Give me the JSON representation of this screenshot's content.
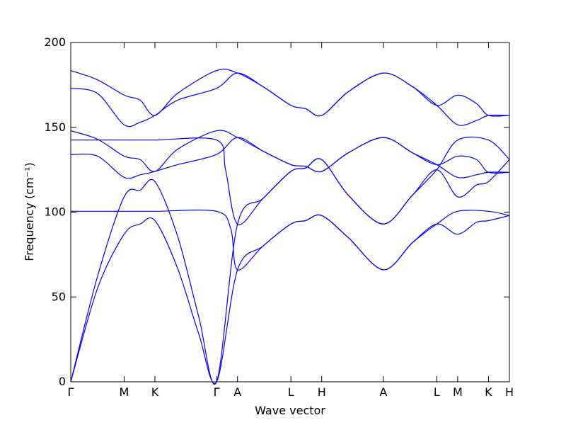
{
  "chart_data": {
    "type": "line",
    "xlabel": "Wave vector",
    "ylabel": "Frequency (cm⁻¹)",
    "ylim": [
      0,
      200
    ],
    "yticks": [
      0,
      50,
      100,
      150,
      200
    ],
    "line_color": "#0000ff",
    "grid": false,
    "legend": "none",
    "high_symmetry_points": [
      {
        "label": "Γ",
        "pos": 0.0
      },
      {
        "label": "M",
        "pos": 1.0
      },
      {
        "label": "K",
        "pos": 1.577
      },
      {
        "label": "Γ",
        "pos": 2.732
      },
      {
        "label": "A",
        "pos": 3.124
      },
      {
        "label": "L",
        "pos": 4.124
      },
      {
        "label": "H",
        "pos": 4.701
      },
      {
        "label": "A",
        "pos": 5.856
      },
      {
        "label": "L",
        "pos": 6.856
      },
      {
        "label": "M",
        "pos": 7.248
      },
      {
        "label": "K",
        "pos": 7.825
      },
      {
        "label": "H",
        "pos": 8.217
      }
    ],
    "bands": [
      {
        "points": [
          [
            0,
            0
          ],
          [
            0.5,
            55
          ],
          [
            1.0,
            87
          ],
          [
            1.3,
            93
          ],
          [
            1.577,
            95
          ],
          [
            2.0,
            67
          ],
          [
            2.4,
            28
          ],
          [
            2.732,
            0
          ],
          [
            3.124,
            66
          ],
          [
            3.6,
            80
          ],
          [
            4.124,
            93
          ],
          [
            4.4,
            95
          ],
          [
            4.701,
            98
          ],
          [
            5.2,
            85
          ],
          [
            5.856,
            66
          ],
          [
            6.4,
            82
          ],
          [
            6.856,
            93
          ],
          [
            7.248,
            87
          ],
          [
            7.6,
            94
          ],
          [
            7.825,
            95
          ],
          [
            8.217,
            98
          ]
        ]
      },
      {
        "points": [
          [
            0,
            0
          ],
          [
            0.5,
            62
          ],
          [
            1.0,
            109
          ],
          [
            1.3,
            113
          ],
          [
            1.577,
            118
          ],
          [
            2.0,
            86
          ],
          [
            2.4,
            38
          ],
          [
            2.732,
            0
          ],
          [
            3.124,
            93
          ],
          [
            3.6,
            108
          ],
          [
            4.124,
            124
          ],
          [
            4.4,
            126
          ],
          [
            4.701,
            131
          ],
          [
            5.2,
            110
          ],
          [
            5.856,
            93
          ],
          [
            6.4,
            110
          ],
          [
            6.856,
            125
          ],
          [
            7.248,
            109
          ],
          [
            7.6,
            116
          ],
          [
            7.825,
            118
          ],
          [
            8.217,
            131
          ]
        ]
      },
      {
        "points": [
          [
            0,
            100.5
          ],
          [
            1.0,
            100.5
          ],
          [
            1.577,
            100.5
          ],
          [
            2.732,
            100.5
          ],
          [
            3.0,
            90
          ],
          [
            3.124,
            66
          ],
          [
            3.6,
            80
          ],
          [
            4.124,
            93
          ],
          [
            4.4,
            95
          ],
          [
            4.701,
            98
          ],
          [
            5.2,
            85
          ],
          [
            5.856,
            66
          ],
          [
            6.4,
            82
          ],
          [
            6.856,
            93
          ],
          [
            7.248,
            100.5
          ],
          [
            7.825,
            100.5
          ],
          [
            8.217,
            98
          ]
        ]
      },
      {
        "points": [
          [
            0,
            134
          ],
          [
            0.5,
            133
          ],
          [
            1.0,
            120.5
          ],
          [
            1.3,
            122
          ],
          [
            1.577,
            124
          ],
          [
            2.0,
            128
          ],
          [
            2.732,
            134
          ],
          [
            3.124,
            144
          ],
          [
            3.6,
            136
          ],
          [
            4.124,
            128
          ],
          [
            4.4,
            127
          ],
          [
            4.701,
            124
          ],
          [
            5.2,
            135
          ],
          [
            5.856,
            144
          ],
          [
            6.4,
            135
          ],
          [
            6.856,
            128
          ],
          [
            7.248,
            120.5
          ],
          [
            7.6,
            122
          ],
          [
            7.825,
            123.5
          ],
          [
            8.217,
            123.5
          ]
        ]
      },
      {
        "points": [
          [
            0,
            142.5
          ],
          [
            1.0,
            142.5
          ],
          [
            1.577,
            142.5
          ],
          [
            2.732,
            142.5
          ],
          [
            2.9,
            125
          ],
          [
            3.124,
            93
          ],
          [
            3.6,
            108
          ],
          [
            4.124,
            124
          ],
          [
            4.4,
            126
          ],
          [
            4.701,
            131
          ],
          [
            5.2,
            110
          ],
          [
            5.856,
            93
          ],
          [
            6.4,
            110
          ],
          [
            6.856,
            125
          ],
          [
            7.248,
            142.5
          ],
          [
            7.825,
            142.5
          ],
          [
            8.217,
            131
          ]
        ]
      },
      {
        "points": [
          [
            0,
            148
          ],
          [
            0.5,
            143
          ],
          [
            1.0,
            133
          ],
          [
            1.3,
            131
          ],
          [
            1.577,
            124
          ],
          [
            2.0,
            137
          ],
          [
            2.732,
            148
          ],
          [
            3.124,
            144
          ],
          [
            3.6,
            136
          ],
          [
            4.124,
            128
          ],
          [
            4.4,
            127
          ],
          [
            4.701,
            124
          ],
          [
            5.2,
            135
          ],
          [
            5.856,
            144
          ],
          [
            6.4,
            135
          ],
          [
            6.856,
            128
          ],
          [
            7.248,
            133
          ],
          [
            7.6,
            131
          ],
          [
            7.825,
            123.5
          ],
          [
            8.217,
            123.5
          ]
        ]
      },
      {
        "points": [
          [
            0,
            173
          ],
          [
            0.5,
            170
          ],
          [
            1.0,
            151.5
          ],
          [
            1.3,
            153
          ],
          [
            1.577,
            157
          ],
          [
            2.0,
            166
          ],
          [
            2.732,
            173
          ],
          [
            3.124,
            182
          ],
          [
            3.6,
            174
          ],
          [
            4.124,
            163
          ],
          [
            4.4,
            161
          ],
          [
            4.701,
            157
          ],
          [
            5.2,
            171
          ],
          [
            5.856,
            182
          ],
          [
            6.4,
            174
          ],
          [
            6.856,
            163
          ],
          [
            7.248,
            151.5
          ],
          [
            7.6,
            154
          ],
          [
            7.825,
            157
          ],
          [
            8.217,
            157
          ]
        ]
      },
      {
        "points": [
          [
            0,
            183.5
          ],
          [
            0.5,
            178
          ],
          [
            1.0,
            169
          ],
          [
            1.3,
            166
          ],
          [
            1.577,
            157
          ],
          [
            2.0,
            170
          ],
          [
            2.732,
            183.5
          ],
          [
            3.124,
            182
          ],
          [
            3.6,
            174
          ],
          [
            4.124,
            163
          ],
          [
            4.4,
            161
          ],
          [
            4.701,
            157
          ],
          [
            5.2,
            171
          ],
          [
            5.856,
            182
          ],
          [
            6.4,
            174
          ],
          [
            6.856,
            163
          ],
          [
            7.248,
            169
          ],
          [
            7.6,
            164
          ],
          [
            7.825,
            157
          ],
          [
            8.217,
            157
          ]
        ]
      }
    ]
  }
}
